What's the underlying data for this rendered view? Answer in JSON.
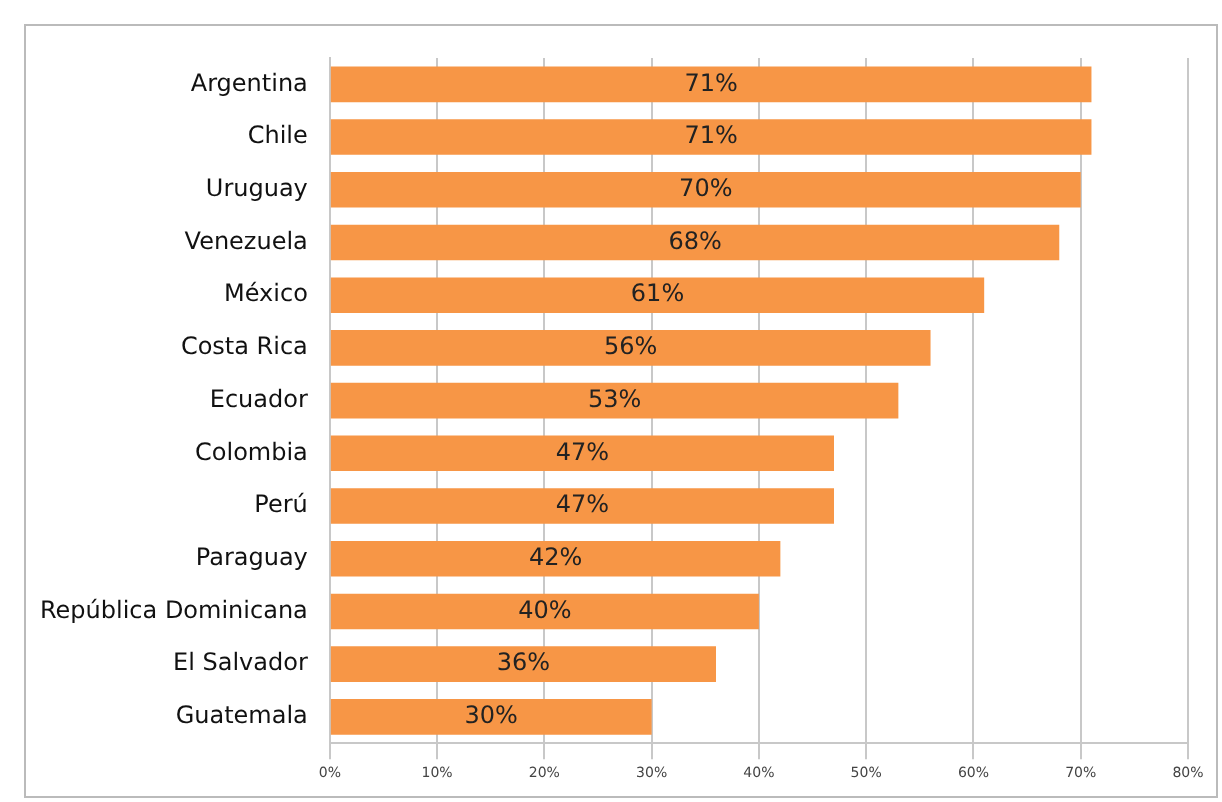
{
  "chart_data": {
    "type": "bar",
    "orientation": "horizontal",
    "categories": [
      "Argentina",
      "Chile",
      "Uruguay",
      "Venezuela",
      "México",
      "Costa Rica",
      "Ecuador",
      "Colombia",
      "Perú",
      "Paraguay",
      "República Dominicana",
      "El Salvador",
      "Guatemala"
    ],
    "values": [
      71,
      71,
      70,
      68,
      61,
      56,
      53,
      47,
      47,
      42,
      40,
      36,
      30
    ],
    "value_labels": [
      "71%",
      "71%",
      "70%",
      "68%",
      "61%",
      "56%",
      "53%",
      "47%",
      "47%",
      "42%",
      "40%",
      "36%",
      "30%"
    ],
    "color": "#f79646",
    "xlim": [
      0,
      80
    ],
    "xticks": [
      {
        "value": 0,
        "label": "0%"
      },
      {
        "value": 10,
        "label": "10%"
      },
      {
        "value": 20,
        "label": "20%"
      },
      {
        "value": 30,
        "label": "30%"
      },
      {
        "value": 40,
        "label": "40%"
      },
      {
        "value": 50,
        "label": "50%"
      },
      {
        "value": 60,
        "label": "60%"
      },
      {
        "value": 70,
        "label": "70%"
      },
      {
        "value": 80,
        "label": "80%"
      }
    ],
    "grid": "x"
  }
}
